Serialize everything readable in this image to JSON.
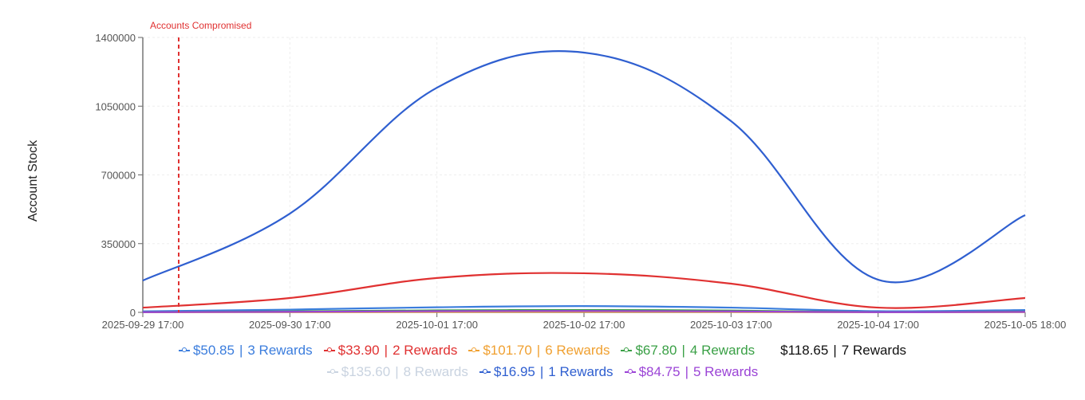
{
  "chart_data": {
    "type": "line",
    "title": "",
    "xlabel": "",
    "ylabel": "Account Stock",
    "ylim": [
      0,
      1400000
    ],
    "yticks": [
      0,
      350000,
      700000,
      1050000,
      1400000
    ],
    "x": [
      "2025-09-29 17:00",
      "2025-09-30 17:00",
      "2025-10-01 17:00",
      "2025-10-02 17:00",
      "2025-10-03 17:00",
      "2025-10-04 17:00",
      "2025-10-05 18:00"
    ],
    "grid": true,
    "legend_position": "bottom",
    "annotations": [
      {
        "type": "vertical-line",
        "label": "Accounts Compromised",
        "x_offset_fraction": 0.04,
        "color": "#e03131",
        "style": "dashed"
      }
    ],
    "series": [
      {
        "name": "$50.85 | 3 Rewards",
        "color": "#3b7ddd",
        "values": [
          5000,
          14000,
          26000,
          32000,
          24000,
          6000,
          12000
        ]
      },
      {
        "name": "$33.90 | 2 Rewards",
        "color": "#e03131",
        "values": [
          24000,
          73000,
          175000,
          199000,
          146000,
          24000,
          73000
        ]
      },
      {
        "name": "$101.70 | 6 Rewards",
        "color": "#f0a030",
        "values": [
          500,
          1500,
          2500,
          3000,
          2500,
          500,
          1500
        ]
      },
      {
        "name": "$67.80 | 4 Rewards",
        "color": "#3aa046",
        "values": [
          1500,
          5000,
          10000,
          12000,
          9000,
          1500,
          4000
        ]
      },
      {
        "name": "$118.65 | 7 Rewards",
        "color": "#111111",
        "values": [],
        "hidden": true
      },
      {
        "name": "$135.60 | 8 Rewards",
        "color": "#c9d3e0",
        "values": [],
        "hidden": true
      },
      {
        "name": "$16.95 | 1 Rewards",
        "color": "#2f5fd0",
        "values": [
          162000,
          503000,
          1144000,
          1323000,
          974000,
          166000,
          495000
        ]
      },
      {
        "name": "$84.75 | 5 Rewards",
        "color": "#9b44d6",
        "values": [
          1000,
          3000,
          6000,
          7000,
          5000,
          1000,
          2500
        ]
      }
    ]
  },
  "axis": {
    "ylabel": "Account Stock",
    "yticks": [
      "0",
      "350000",
      "700000",
      "1050000",
      "1400000"
    ],
    "xticks": [
      "2025-09-29 17:00",
      "2025-09-30 17:00",
      "2025-10-01 17:00",
      "2025-10-02 17:00",
      "2025-10-03 17:00",
      "2025-10-04 17:00",
      "2025-10-05 18:00"
    ]
  },
  "annotation": {
    "label": "Accounts Compromised"
  },
  "legend": {
    "row1": [
      {
        "price": "$50.85",
        "rewards": "3 Rewards",
        "color": "#3b7ddd",
        "icon": "line-circle-icon",
        "active": true
      },
      {
        "price": "$33.90",
        "rewards": "2 Rewards",
        "color": "#e03131",
        "icon": "line-circle-icon",
        "active": true
      },
      {
        "price": "$101.70",
        "rewards": "6 Rewards",
        "color": "#f0a030",
        "icon": "line-circle-icon",
        "active": true
      },
      {
        "price": "$67.80",
        "rewards": "4 Rewards",
        "color": "#3aa046",
        "icon": "line-circle-icon",
        "active": true
      },
      {
        "price": "$118.65",
        "rewards": "7 Rewards",
        "color": "#111111",
        "icon": "",
        "active": true
      }
    ],
    "row2": [
      {
        "price": "$135.60",
        "rewards": "8 Rewards",
        "color": "#c9d3e0",
        "icon": "line-circle-icon",
        "active": false
      },
      {
        "price": "$16.95",
        "rewards": "1 Rewards",
        "color": "#2f5fd0",
        "icon": "line-circle-icon",
        "active": true
      },
      {
        "price": "$84.75",
        "rewards": "5 Rewards",
        "color": "#9b44d6",
        "icon": "line-circle-icon",
        "active": true
      }
    ],
    "separator": "|"
  }
}
